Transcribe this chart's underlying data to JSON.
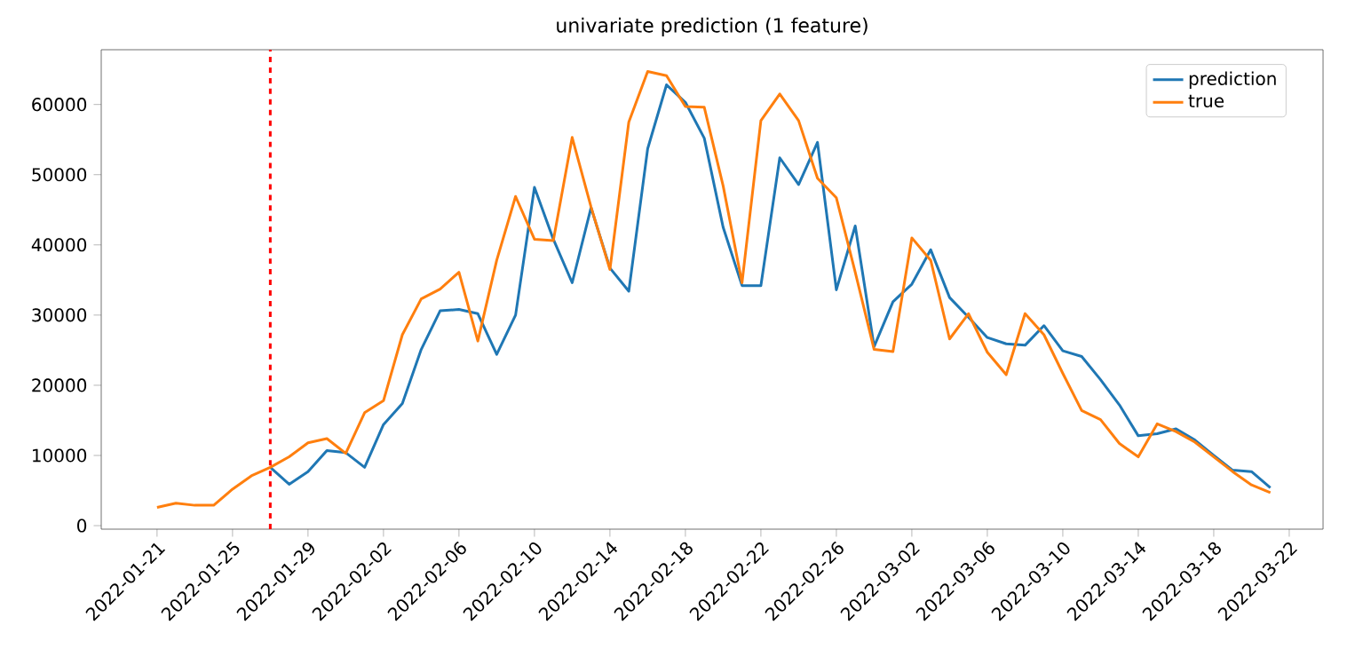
{
  "chart_data": {
    "type": "line",
    "title": "univariate prediction (1 feature)",
    "x": [
      "2022-01-21",
      "2022-01-22",
      "2022-01-23",
      "2022-01-24",
      "2022-01-25",
      "2022-01-26",
      "2022-01-27",
      "2022-01-28",
      "2022-01-29",
      "2022-01-30",
      "2022-01-31",
      "2022-02-01",
      "2022-02-02",
      "2022-02-03",
      "2022-02-04",
      "2022-02-05",
      "2022-02-06",
      "2022-02-07",
      "2022-02-08",
      "2022-02-09",
      "2022-02-10",
      "2022-02-11",
      "2022-02-12",
      "2022-02-13",
      "2022-02-14",
      "2022-02-15",
      "2022-02-16",
      "2022-02-17",
      "2022-02-18",
      "2022-02-19",
      "2022-02-20",
      "2022-02-21",
      "2022-02-22",
      "2022-02-23",
      "2022-02-24",
      "2022-02-25",
      "2022-02-26",
      "2022-02-27",
      "2022-02-28",
      "2022-03-01",
      "2022-03-02",
      "2022-03-03",
      "2022-03-04",
      "2022-03-05",
      "2022-03-06",
      "2022-03-07",
      "2022-03-08",
      "2022-03-09",
      "2022-03-10",
      "2022-03-11",
      "2022-03-12",
      "2022-03-13",
      "2022-03-14",
      "2022-03-15",
      "2022-03-16",
      "2022-03-17",
      "2022-03-18",
      "2022-03-19",
      "2022-03-20",
      "2022-03-21"
    ],
    "series": [
      {
        "name": "prediction",
        "color": "#1f77b4",
        "values": [
          null,
          null,
          null,
          null,
          null,
          null,
          8300,
          5900,
          7700,
          10700,
          10400,
          8300,
          14400,
          17400,
          25100,
          30600,
          30800,
          30200,
          24400,
          30000,
          48200,
          40800,
          34600,
          45300,
          36700,
          33400,
          53700,
          62800,
          60300,
          55200,
          42500,
          34200,
          34200,
          52400,
          48600,
          54600,
          33600,
          42700,
          25500,
          31900,
          34400,
          39300,
          32500,
          29700,
          26800,
          25900,
          25700,
          28500,
          24900,
          24100,
          20800,
          17200,
          12800,
          13100,
          13800,
          12200,
          10000,
          7900,
          7700,
          5400
        ]
      },
      {
        "name": "true",
        "color": "#ff7f0e",
        "values": [
          2600,
          3200,
          2900,
          2900,
          5200,
          7100,
          8300,
          9800,
          11800,
          12400,
          10300,
          16100,
          17800,
          27200,
          32300,
          33700,
          36100,
          26300,
          37800,
          46900,
          40800,
          40600,
          55300,
          45400,
          36500,
          57500,
          64700,
          64100,
          59700,
          59600,
          48400,
          34600,
          57700,
          61500,
          57700,
          49500,
          46700,
          36100,
          25100,
          24800,
          41000,
          37800,
          26600,
          30200,
          24700,
          21500,
          30200,
          27200,
          21700,
          16400,
          15100,
          11700,
          9800,
          14500,
          13400,
          11900,
          9800,
          7700,
          5800,
          4700
        ]
      }
    ],
    "xlim": [
      "2022-01-18T01:00",
      "2022-03-23T19:00"
    ],
    "xticks": [
      "2022-01-21",
      "2022-01-25",
      "2022-01-29",
      "2022-02-02",
      "2022-02-06",
      "2022-02-10",
      "2022-02-14",
      "2022-02-18",
      "2022-02-22",
      "2022-02-26",
      "2022-03-02",
      "2022-03-06",
      "2022-03-10",
      "2022-03-14",
      "2022-03-18",
      "2022-03-22"
    ],
    "ylim": [
      -500,
      67800
    ],
    "yticks": [
      0,
      10000,
      20000,
      30000,
      40000,
      50000,
      60000
    ],
    "ref_lines": [
      {
        "axis": "x",
        "value": "2022-01-27",
        "color": "#ff0000",
        "line_style": "dashed"
      }
    ],
    "grid": false,
    "legend": "top right"
  }
}
